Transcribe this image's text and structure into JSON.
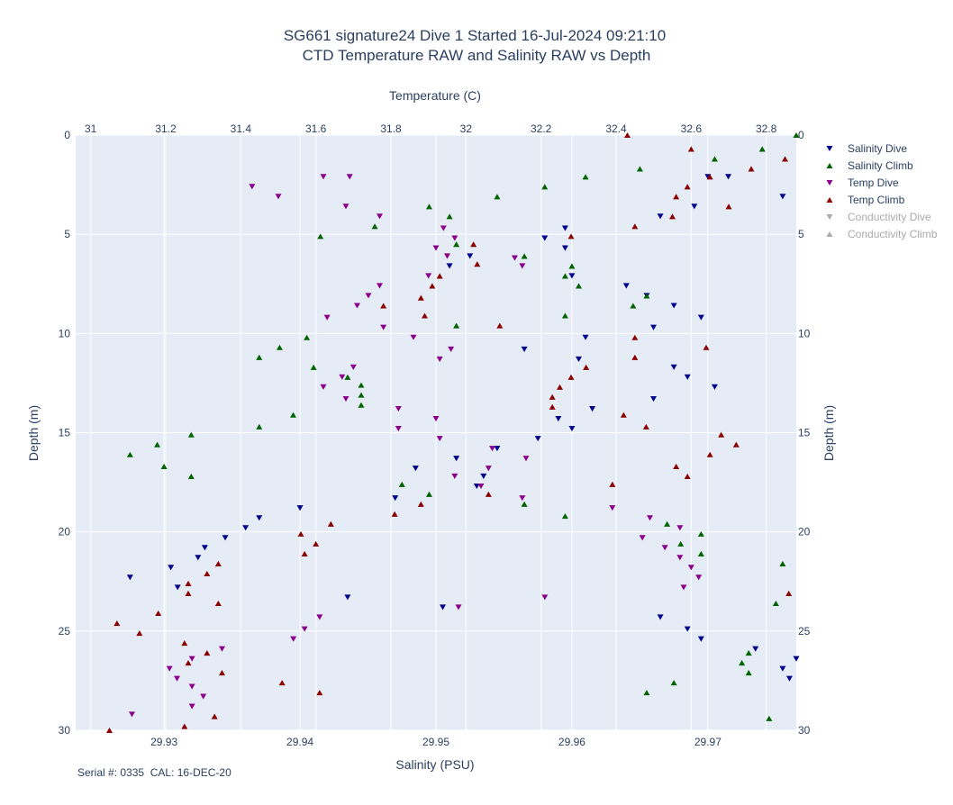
{
  "chart_data": {
    "type": "scatter",
    "title": "SG661 signature24 Dive 1 Started 16-Jul-2024 09:21:10",
    "subtitle": "CTD Temperature RAW and Salinity RAW vs Depth",
    "xlabel_bottom": "Salinity (PSU)",
    "xlabel_top": "Temperature (C)",
    "ylabel_left": "Depth (m)",
    "ylabel_right": "Depth (m)",
    "x_bottom_range": [
      29.9235,
      29.9765
    ],
    "x_bottom_ticks": [
      "29.93",
      "29.94",
      "29.95",
      "29.96",
      "29.97"
    ],
    "x_bottom_tick_values": [
      29.93,
      29.94,
      29.95,
      29.96,
      29.97
    ],
    "x_top_range": [
      30.96,
      32.88
    ],
    "x_top_ticks": [
      "31",
      "31.2",
      "31.4",
      "31.6",
      "31.8",
      "32",
      "32.2",
      "32.4",
      "32.6",
      "32.8"
    ],
    "x_top_tick_values": [
      31,
      31.2,
      31.4,
      31.6,
      31.8,
      32,
      32.2,
      32.4,
      32.6,
      32.8
    ],
    "y_range": [
      0,
      30
    ],
    "y_reversed": true,
    "y_ticks": [
      "0",
      "5",
      "10",
      "15",
      "20",
      "25",
      "30"
    ],
    "y_tick_values": [
      0,
      5,
      10,
      15,
      20,
      25,
      30
    ],
    "grid": true,
    "legend_position": "right",
    "footer": "Serial #: 0335  CAL: 16-DEC-20",
    "series": [
      {
        "name": "Salinity Dive",
        "axis": "bottom",
        "symbol": "triangle-down",
        "color": "#00008b",
        "visible": true,
        "points": [
          [
            29.97,
            2.1
          ],
          [
            29.9715,
            2.1
          ],
          [
            29.9755,
            3.1
          ],
          [
            29.969,
            3.6
          ],
          [
            29.9665,
            4.1
          ],
          [
            29.9595,
            4.7
          ],
          [
            29.958,
            5.2
          ],
          [
            29.9595,
            5.7
          ],
          [
            29.9525,
            6.1
          ],
          [
            29.951,
            6.6
          ],
          [
            29.96,
            7.1
          ],
          [
            29.964,
            7.6
          ],
          [
            29.9655,
            8.1
          ],
          [
            29.9675,
            8.6
          ],
          [
            29.9695,
            9.2
          ],
          [
            29.966,
            9.7
          ],
          [
            29.961,
            10.2
          ],
          [
            29.9565,
            10.8
          ],
          [
            29.9605,
            11.3
          ],
          [
            29.9675,
            11.7
          ],
          [
            29.9685,
            12.2
          ],
          [
            29.9705,
            12.7
          ],
          [
            29.966,
            13.3
          ],
          [
            29.9615,
            13.8
          ],
          [
            29.959,
            14.3
          ],
          [
            29.96,
            14.8
          ],
          [
            29.9575,
            15.3
          ],
          [
            29.9545,
            15.8
          ],
          [
            29.9515,
            16.3
          ],
          [
            29.9485,
            16.8
          ],
          [
            29.9535,
            17.2
          ],
          [
            29.953,
            17.7
          ],
          [
            29.947,
            18.3
          ],
          [
            29.94,
            18.8
          ],
          [
            29.937,
            19.3
          ],
          [
            29.936,
            19.8
          ],
          [
            29.9345,
            20.3
          ],
          [
            29.933,
            20.8
          ],
          [
            29.9325,
            21.3
          ],
          [
            29.9305,
            21.8
          ],
          [
            29.9275,
            22.3
          ],
          [
            29.931,
            22.8
          ],
          [
            29.9435,
            23.3
          ],
          [
            29.9505,
            23.8
          ],
          [
            29.9665,
            24.3
          ],
          [
            29.9685,
            24.9
          ],
          [
            29.9695,
            25.4
          ],
          [
            29.9735,
            25.9
          ],
          [
            29.9765,
            26.4
          ],
          [
            29.9755,
            26.9
          ],
          [
            29.976,
            27.4
          ]
        ]
      },
      {
        "name": "Salinity Climb",
        "axis": "bottom",
        "symbol": "triangle-up",
        "color": "#006400",
        "visible": true,
        "points": [
          [
            29.9765,
            0.0
          ],
          [
            29.974,
            0.7
          ],
          [
            29.9705,
            1.2
          ],
          [
            29.965,
            1.7
          ],
          [
            29.961,
            2.1
          ],
          [
            29.958,
            2.6
          ],
          [
            29.9545,
            3.1
          ],
          [
            29.9495,
            3.6
          ],
          [
            29.951,
            4.1
          ],
          [
            29.9455,
            4.6
          ],
          [
            29.9415,
            5.1
          ],
          [
            29.9515,
            5.5
          ],
          [
            29.9565,
            6.1
          ],
          [
            29.96,
            6.6
          ],
          [
            29.9595,
            7.1
          ],
          [
            29.9605,
            7.6
          ],
          [
            29.9655,
            8.1
          ],
          [
            29.9645,
            8.6
          ],
          [
            29.9595,
            9.1
          ],
          [
            29.9515,
            9.6
          ],
          [
            29.9405,
            10.2
          ],
          [
            29.9385,
            10.7
          ],
          [
            29.937,
            11.2
          ],
          [
            29.941,
            11.7
          ],
          [
            29.9435,
            12.2
          ],
          [
            29.9445,
            12.6
          ],
          [
            29.9445,
            13.1
          ],
          [
            29.9445,
            13.6
          ],
          [
            29.9395,
            14.1
          ],
          [
            29.937,
            14.7
          ],
          [
            29.932,
            15.1
          ],
          [
            29.9295,
            15.6
          ],
          [
            29.9275,
            16.1
          ],
          [
            29.93,
            16.7
          ],
          [
            29.932,
            17.2
          ],
          [
            29.9475,
            17.6
          ],
          [
            29.9495,
            18.1
          ],
          [
            29.9565,
            18.6
          ],
          [
            29.9595,
            19.2
          ],
          [
            29.967,
            19.6
          ],
          [
            29.9695,
            20.1
          ],
          [
            29.968,
            20.6
          ],
          [
            29.9695,
            21.1
          ],
          [
            29.9755,
            21.6
          ],
          [
            29.975,
            23.6
          ],
          [
            29.973,
            26.1
          ],
          [
            29.9725,
            26.6
          ],
          [
            29.973,
            27.1
          ],
          [
            29.9655,
            28.1
          ],
          [
            29.9675,
            27.6
          ],
          [
            29.9745,
            29.4
          ]
        ]
      },
      {
        "name": "Temp Dive",
        "axis": "top",
        "symbol": "triangle-down",
        "color": "#8b008b",
        "visible": true,
        "points": [
          [
            31.62,
            2.1
          ],
          [
            31.69,
            2.1
          ],
          [
            31.43,
            2.6
          ],
          [
            31.5,
            3.1
          ],
          [
            31.68,
            3.6
          ],
          [
            31.77,
            4.1
          ],
          [
            31.94,
            4.7
          ],
          [
            31.97,
            5.2
          ],
          [
            31.92,
            5.7
          ],
          [
            31.95,
            6.1
          ],
          [
            32.13,
            6.2
          ],
          [
            32.15,
            6.6
          ],
          [
            31.9,
            7.1
          ],
          [
            31.77,
            7.6
          ],
          [
            31.74,
            8.1
          ],
          [
            31.71,
            8.6
          ],
          [
            31.63,
            9.2
          ],
          [
            31.78,
            9.7
          ],
          [
            31.86,
            10.2
          ],
          [
            31.96,
            10.8
          ],
          [
            31.93,
            11.3
          ],
          [
            31.7,
            11.7
          ],
          [
            31.67,
            12.2
          ],
          [
            31.62,
            12.7
          ],
          [
            31.68,
            13.3
          ],
          [
            31.82,
            13.8
          ],
          [
            31.92,
            14.3
          ],
          [
            31.82,
            14.8
          ],
          [
            31.93,
            15.3
          ],
          [
            32.07,
            15.8
          ],
          [
            32.16,
            16.3
          ],
          [
            32.06,
            16.8
          ],
          [
            31.97,
            17.2
          ],
          [
            32.04,
            17.7
          ],
          [
            32.15,
            18.3
          ],
          [
            32.39,
            18.8
          ],
          [
            32.49,
            19.3
          ],
          [
            32.57,
            19.8
          ],
          [
            32.47,
            20.3
          ],
          [
            32.53,
            20.8
          ],
          [
            32.57,
            21.3
          ],
          [
            32.6,
            21.8
          ],
          [
            32.62,
            22.3
          ],
          [
            32.58,
            22.8
          ],
          [
            32.21,
            23.3
          ],
          [
            31.98,
            23.8
          ],
          [
            31.61,
            24.3
          ],
          [
            31.57,
            24.9
          ],
          [
            31.54,
            25.4
          ],
          [
            31.35,
            25.9
          ],
          [
            31.27,
            26.4
          ],
          [
            31.21,
            26.9
          ],
          [
            31.23,
            27.4
          ],
          [
            31.27,
            27.8
          ],
          [
            31.3,
            28.3
          ],
          [
            31.27,
            28.8
          ],
          [
            31.11,
            29.2
          ]
        ]
      },
      {
        "name": "Temp Climb",
        "axis": "top",
        "symbol": "triangle-up",
        "color": "#8b0000",
        "visible": true,
        "points": [
          [
            32.43,
            0.0
          ],
          [
            32.6,
            0.7
          ],
          [
            32.85,
            1.2
          ],
          [
            32.76,
            1.7
          ],
          [
            32.65,
            2.1
          ],
          [
            32.59,
            2.6
          ],
          [
            32.56,
            3.1
          ],
          [
            32.7,
            3.6
          ],
          [
            32.55,
            4.1
          ],
          [
            32.45,
            4.6
          ],
          [
            32.28,
            5.1
          ],
          [
            32.02,
            5.5
          ],
          [
            32.03,
            6.5
          ],
          [
            31.93,
            7.1
          ],
          [
            31.91,
            7.6
          ],
          [
            31.88,
            8.2
          ],
          [
            31.78,
            8.6
          ],
          [
            31.89,
            9.1
          ],
          [
            32.09,
            9.6
          ],
          [
            32.45,
            10.2
          ],
          [
            32.64,
            10.7
          ],
          [
            32.45,
            11.2
          ],
          [
            32.32,
            11.7
          ],
          [
            32.28,
            12.2
          ],
          [
            32.25,
            12.7
          ],
          [
            32.23,
            13.2
          ],
          [
            32.23,
            13.7
          ],
          [
            32.42,
            14.1
          ],
          [
            32.48,
            14.7
          ],
          [
            32.68,
            15.1
          ],
          [
            32.72,
            15.6
          ],
          [
            32.65,
            16.1
          ],
          [
            32.56,
            16.7
          ],
          [
            32.59,
            17.2
          ],
          [
            32.39,
            17.6
          ],
          [
            32.06,
            18.1
          ],
          [
            31.88,
            18.6
          ],
          [
            31.81,
            19.1
          ],
          [
            31.64,
            19.6
          ],
          [
            31.56,
            20.1
          ],
          [
            31.6,
            20.6
          ],
          [
            31.57,
            21.1
          ],
          [
            31.34,
            21.6
          ],
          [
            31.31,
            22.1
          ],
          [
            31.26,
            22.6
          ],
          [
            31.26,
            23.1
          ],
          [
            31.34,
            23.6
          ],
          [
            31.18,
            24.1
          ],
          [
            31.07,
            24.6
          ],
          [
            31.13,
            25.1
          ],
          [
            31.25,
            25.6
          ],
          [
            31.31,
            26.1
          ],
          [
            31.26,
            26.6
          ],
          [
            31.35,
            27.1
          ],
          [
            31.51,
            27.6
          ],
          [
            31.61,
            28.1
          ],
          [
            31.33,
            29.3
          ],
          [
            31.25,
            29.8
          ],
          [
            31.05,
            30.0
          ],
          [
            32.86,
            23.1
          ]
        ]
      },
      {
        "name": "Conductivity Dive",
        "axis": "bottom",
        "symbol": "triangle-down",
        "color": "#aaaaaa",
        "visible": false,
        "points": []
      },
      {
        "name": "Conductivity Climb",
        "axis": "bottom",
        "symbol": "triangle-up",
        "color": "#aaaaaa",
        "visible": false,
        "points": []
      }
    ]
  },
  "colors": {
    "plot_background": "#e5ecf6",
    "grid": "#ffffff",
    "text": "#2a3f5f",
    "legend_disabled": "#aaaaaa"
  }
}
